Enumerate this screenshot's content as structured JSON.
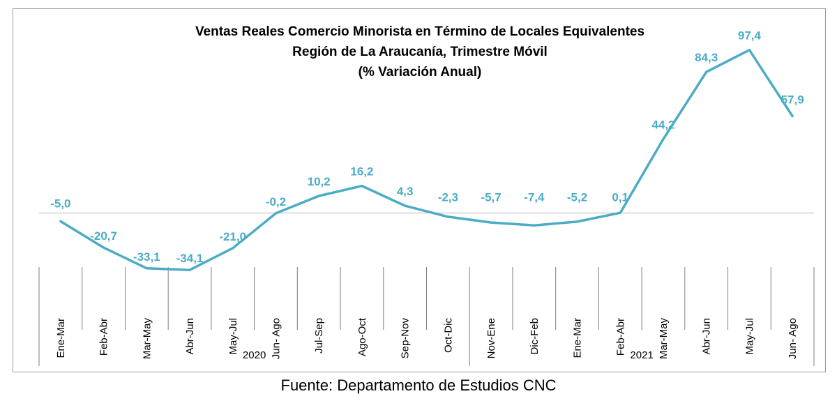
{
  "chart_data": {
    "type": "line",
    "title_lines": [
      "Ventas Reales Comercio Minorista  en Término de Locales Equivalentes",
      "Región de La Araucanía, Trimestre Móvil",
      "(% Variación Anual)"
    ],
    "categories": [
      "Ene-Mar",
      "Feb-Abr",
      "Mar-May",
      "Abr-Jun",
      "May-Jul",
      "Jun- Ago",
      "Jul-Sep",
      "Ago-Oct",
      "Sep-Nov",
      "Oct-Dic",
      "Nov-Ene",
      "Dic-Feb",
      "Ene-Mar",
      "Feb-Abr",
      "Mar-May",
      "Abr-Jun",
      "May-Jul",
      "Jun- Ago"
    ],
    "groups": [
      {
        "label": "2020",
        "start": 0,
        "end": 9
      },
      {
        "label": "2021",
        "start": 10,
        "end": 17
      }
    ],
    "series": [
      {
        "values": [
          -5.0,
          -20.7,
          -33.1,
          -34.1,
          -21.0,
          -0.2,
          10.2,
          16.2,
          4.3,
          -2.3,
          -5.7,
          -7.4,
          -5.2,
          0.1,
          44.2,
          84.3,
          97.4,
          57.9
        ],
        "labels": [
          "-5,0",
          "-20,7",
          "-33,1",
          "-34,1",
          "-21,0",
          "-0,2",
          "10,2",
          "16,2",
          "4,3",
          "-2,3",
          "-5,7",
          "-7,4",
          "-5,2",
          "0,1",
          "44,2",
          "84,3",
          "97,4",
          "57,9"
        ],
        "color": "#4bacc6"
      }
    ],
    "ylim": [
      -40,
      105
    ],
    "grid": false,
    "legend": "none"
  },
  "source": "Fuente: Departamento de Estudios CNC"
}
